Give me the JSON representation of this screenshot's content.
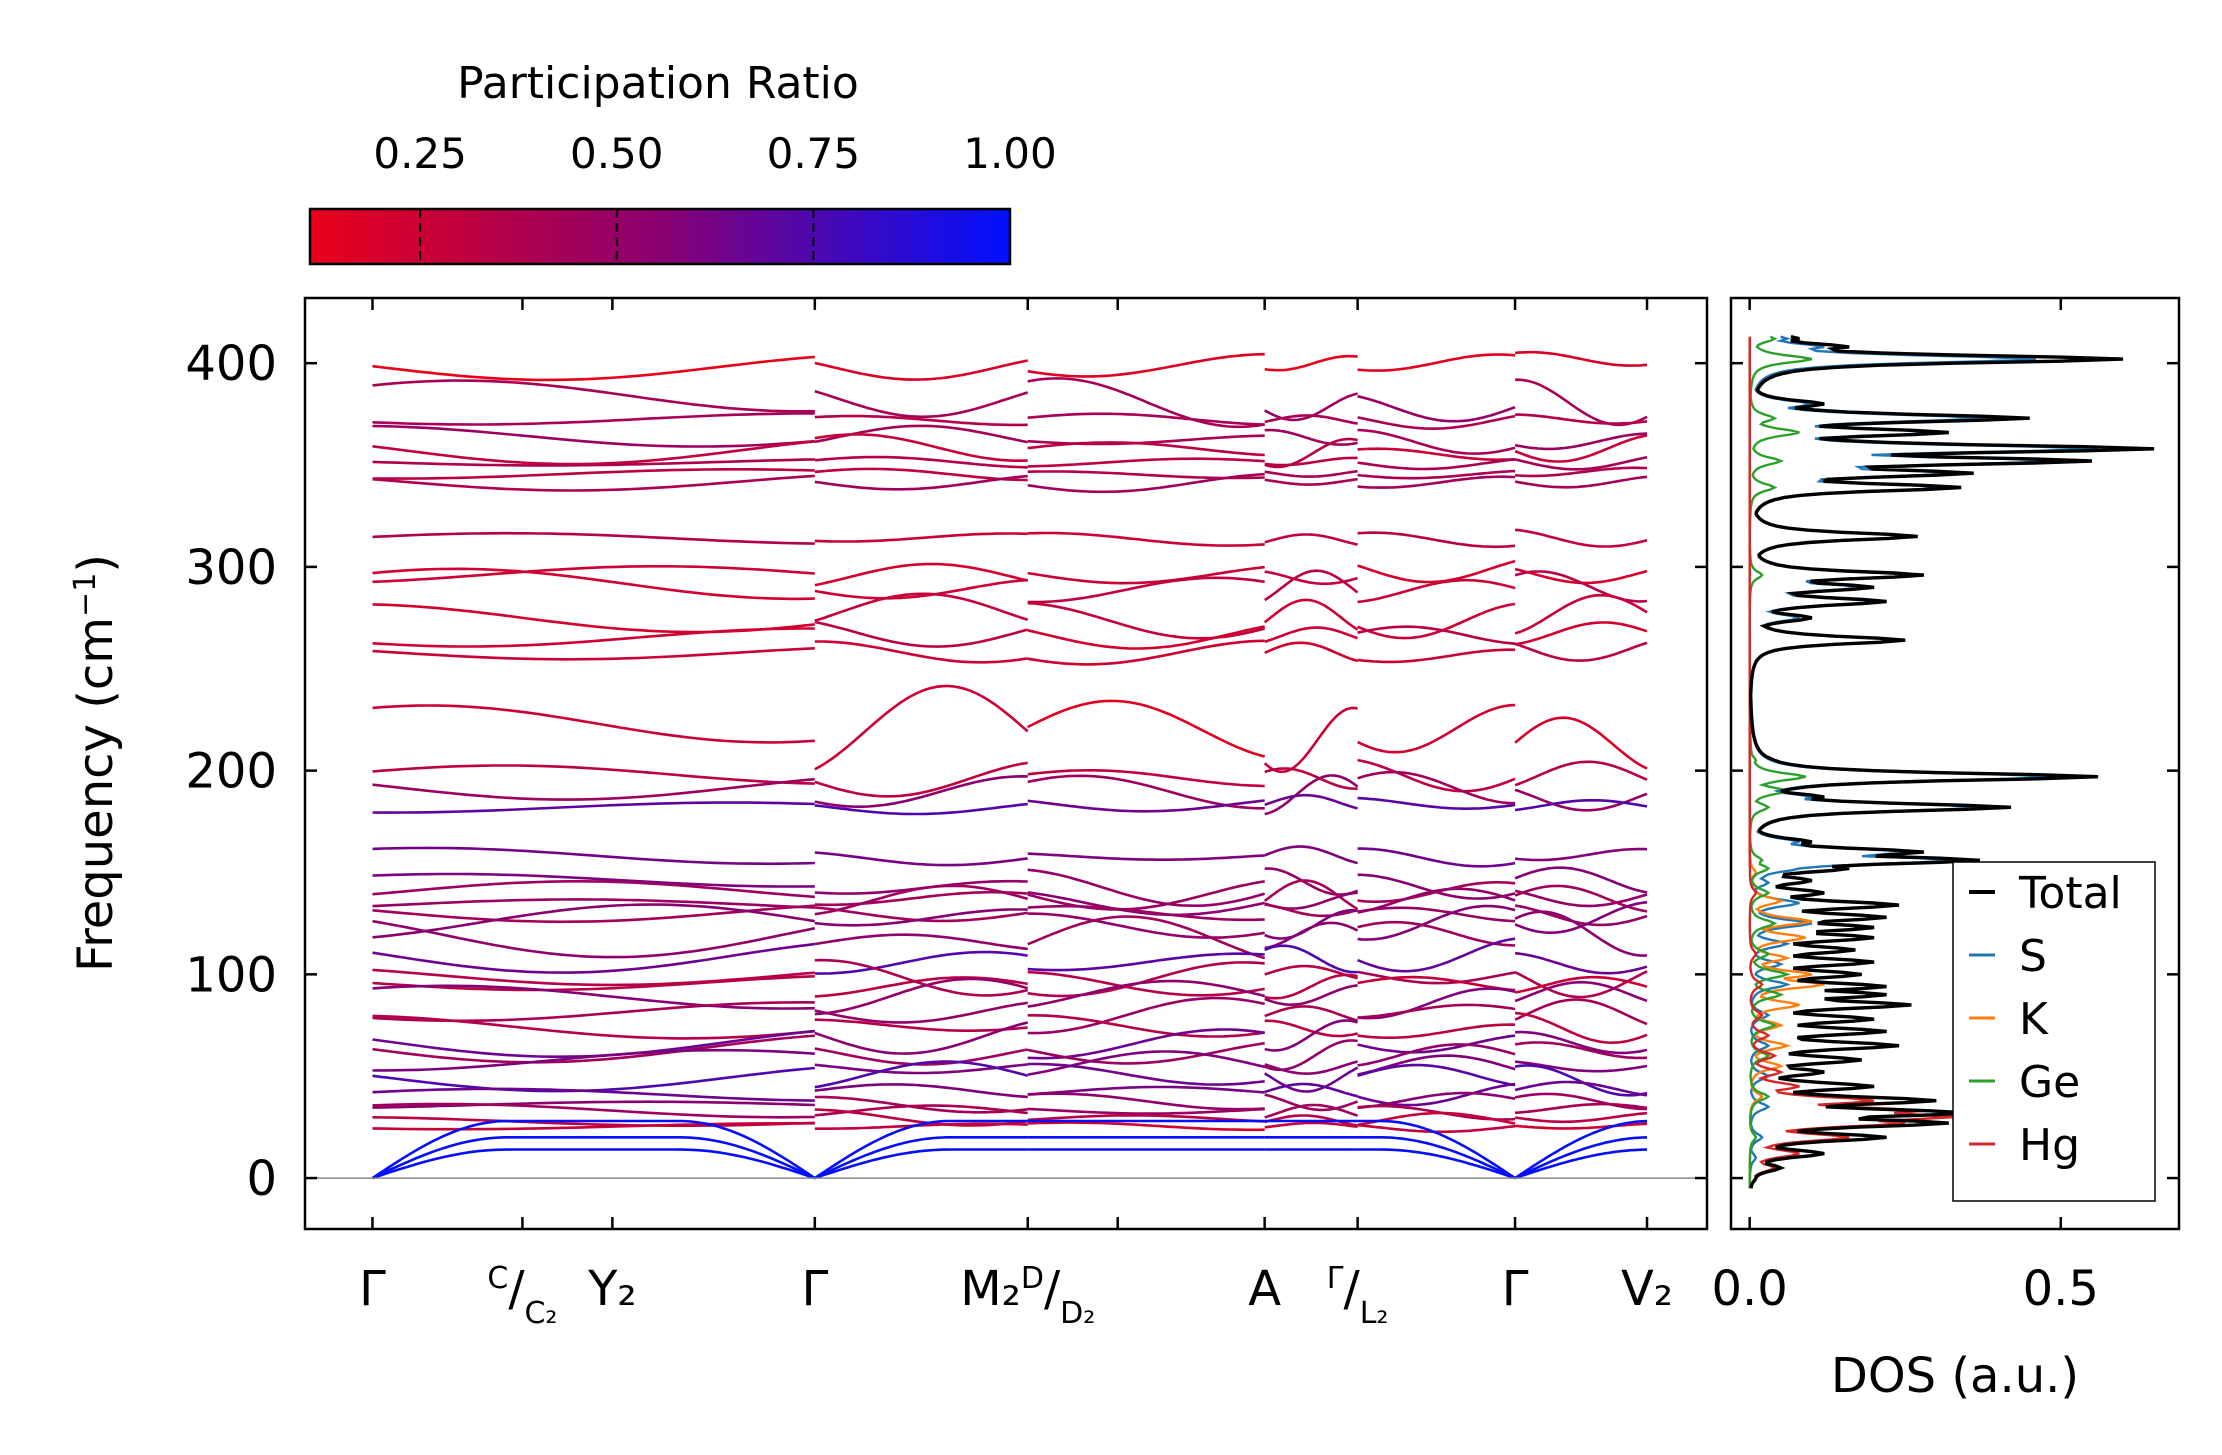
{
  "chart_data": [
    {
      "type": "line",
      "title": "",
      "xlabel": "",
      "ylabel": "Frequency (cm",
      "ylabel_suffix": ")",
      "ylabel_exponent": "−1",
      "ylim": [
        -25,
        432
      ],
      "yticks": [
        0,
        100,
        200,
        300,
        400
      ],
      "ytick_labels": [
        "0",
        "100",
        "200",
        "300",
        "400"
      ],
      "high_symmetry_points": [
        {
          "pos": 0.0,
          "main": "Γ",
          "sup": "",
          "slash": "",
          "sub": ""
        },
        {
          "pos": 1.0,
          "main": "",
          "sup": "C",
          "slash": "/",
          "sub": "C₂"
        },
        {
          "pos": 1.6,
          "main": "Y₂",
          "sup": "",
          "slash": "",
          "sub": ""
        },
        {
          "pos": 2.95,
          "main": "Γ",
          "sup": "",
          "slash": "",
          "sub": ""
        },
        {
          "pos": 4.37,
          "main": "M₂",
          "sup": "D",
          "slash": "/",
          "sub": "D₂"
        },
        {
          "pos": 4.97,
          "main": "",
          "sup": "",
          "slash": "",
          "sub": ""
        },
        {
          "pos": 5.95,
          "main": "A",
          "sup": "",
          "slash": "",
          "sub": ""
        },
        {
          "pos": 6.57,
          "main": "",
          "sup": "Γ",
          "slash": "/",
          "sub": "L₂"
        },
        {
          "pos": 7.62,
          "main": "Γ",
          "sup": "",
          "slash": "",
          "sub": ""
        },
        {
          "pos": 8.5,
          "main": "V₂",
          "sup": "",
          "slash": "",
          "sub": ""
        }
      ],
      "xlim": [
        -0.45,
        8.9
      ],
      "segment_breaks": [
        2.95,
        4.37,
        5.95,
        6.57,
        7.62
      ],
      "zero_line": 0,
      "colorbar": {
        "title": "Participation Ratio",
        "ticks": [
          0.25,
          0.5,
          0.75,
          1.0
        ],
        "tick_labels": [
          "0.25",
          "0.50",
          "0.75",
          "1.00"
        ],
        "range": [
          0.11,
          1.0
        ],
        "color_low": "#e8001a",
        "color_mid": "#8a0070",
        "color_high": "#0010ff"
      },
      "bands_flat": [
        {
          "y": 400,
          "pr": 0.13,
          "wave": 6
        },
        {
          "y": 381,
          "pr": 0.45,
          "wave": 8
        },
        {
          "y": 372,
          "pr": 0.4,
          "wave": 3
        },
        {
          "y": 363,
          "pr": 0.42,
          "wave": 4
        },
        {
          "y": 357,
          "pr": 0.3,
          "wave": 5
        },
        {
          "y": 352,
          "pr": 0.38,
          "wave": 3
        },
        {
          "y": 346,
          "pr": 0.35,
          "wave": 2
        },
        {
          "y": 341,
          "pr": 0.4,
          "wave": 3
        },
        {
          "y": 314,
          "pr": 0.3,
          "wave": 3
        },
        {
          "y": 297,
          "pr": 0.25,
          "wave": 6
        },
        {
          "y": 290,
          "pr": 0.28,
          "wave": 6
        },
        {
          "y": 276,
          "pr": 0.25,
          "wave": 8
        },
        {
          "y": 267,
          "pr": 0.27,
          "wave": 5
        },
        {
          "y": 258,
          "pr": 0.28,
          "wave": 5
        },
        {
          "y": 218,
          "pr": 0.2,
          "wave": 18
        },
        {
          "y": 198,
          "pr": 0.32,
          "wave": 6
        },
        {
          "y": 190,
          "pr": 0.5,
          "wave": 8
        },
        {
          "y": 183,
          "pr": 0.7,
          "wave": 3
        },
        {
          "y": 158,
          "pr": 0.62,
          "wave": 3
        },
        {
          "y": 145,
          "pr": 0.55,
          "wave": 6
        },
        {
          "y": 139,
          "pr": 0.45,
          "wave": 6
        },
        {
          "y": 135,
          "pr": 0.5,
          "wave": 5
        },
        {
          "y": 131,
          "pr": 0.48,
          "wave": 5
        },
        {
          "y": 126,
          "pr": 0.55,
          "wave": 6
        },
        {
          "y": 118,
          "pr": 0.5,
          "wave": 8
        },
        {
          "y": 108,
          "pr": 0.7,
          "wave": 8
        },
        {
          "y": 99,
          "pr": 0.4,
          "wave": 6
        },
        {
          "y": 95,
          "pr": 0.3,
          "wave": 4
        },
        {
          "y": 88,
          "pr": 0.55,
          "wave": 7
        },
        {
          "y": 82,
          "pr": 0.45,
          "wave": 6
        },
        {
          "y": 74,
          "pr": 0.35,
          "wave": 5
        },
        {
          "y": 68,
          "pr": 0.6,
          "wave": 6
        },
        {
          "y": 62,
          "pr": 0.5,
          "wave": 5
        },
        {
          "y": 56,
          "pr": 0.55,
          "wave": 5
        },
        {
          "y": 49,
          "pr": 0.7,
          "wave": 5
        },
        {
          "y": 42,
          "pr": 0.65,
          "wave": 4
        },
        {
          "y": 37,
          "pr": 0.5,
          "wave": 3
        },
        {
          "y": 33,
          "pr": 0.45,
          "wave": 3
        },
        {
          "y": 29,
          "pr": 0.3,
          "wave": 3
        },
        {
          "y": 25,
          "pr": 0.25,
          "wave": 2
        }
      ],
      "acoustic": [
        {
          "top": 28,
          "pr": 0.98
        },
        {
          "top": 20,
          "pr": 0.98
        },
        {
          "top": 14,
          "pr": 0.98
        }
      ]
    },
    {
      "type": "line",
      "xlabel": "DOS (a.u.)",
      "xlim": [
        -0.03,
        0.69
      ],
      "xticks": [
        0.0,
        0.5
      ],
      "xtick_labels": [
        "0.0",
        "0.5"
      ],
      "ylim": [
        -25,
        432
      ],
      "legend_position": "lower-right",
      "series": [
        {
          "name": "Total",
          "color": "#000000",
          "peaks": [
            [
              0,
              0.01
            ],
            [
              5,
              0.05
            ],
            [
              12,
              0.12
            ],
            [
              20,
              0.22
            ],
            [
              27,
              0.32
            ],
            [
              32,
              0.35
            ],
            [
              38,
              0.3
            ],
            [
              45,
              0.2
            ],
            [
              52,
              0.12
            ],
            [
              58,
              0.18
            ],
            [
              65,
              0.24
            ],
            [
              72,
              0.22
            ],
            [
              78,
              0.2
            ],
            [
              85,
              0.26
            ],
            [
              90,
              0.22
            ],
            [
              94,
              0.22
            ],
            [
              100,
              0.18
            ],
            [
              106,
              0.2
            ],
            [
              112,
              0.17
            ],
            [
              118,
              0.2
            ],
            [
              123,
              0.2
            ],
            [
              128,
              0.22
            ],
            [
              134,
              0.24
            ],
            [
              140,
              0.12
            ],
            [
              146,
              0.1
            ],
            [
              152,
              0.16
            ],
            [
              156,
              0.37
            ],
            [
              160,
              0.28
            ],
            [
              165,
              0.1
            ],
            [
              182,
              0.42
            ],
            [
              187,
              0.12
            ],
            [
              197,
              0.56
            ],
            [
              205,
              0.04
            ],
            [
              264,
              0.25
            ],
            [
              275,
              0.1
            ],
            [
              283,
              0.22
            ],
            [
              290,
              0.2
            ],
            [
              296,
              0.28
            ],
            [
              315,
              0.27
            ],
            [
              339,
              0.34
            ],
            [
              346,
              0.36
            ],
            [
              352,
              0.55
            ],
            [
              358,
              0.65
            ],
            [
              366,
              0.32
            ],
            [
              373,
              0.45
            ],
            [
              380,
              0.12
            ],
            [
              402,
              0.6
            ],
            [
              408,
              0.16
            ],
            [
              412,
              0.08
            ]
          ]
        },
        {
          "name": "S",
          "color": "#1f77b4",
          "peaks": [
            [
              0,
              0.0
            ],
            [
              10,
              0.01
            ],
            [
              20,
              0.02
            ],
            [
              35,
              0.03
            ],
            [
              50,
              0.03
            ],
            [
              65,
              0.03
            ],
            [
              80,
              0.03
            ],
            [
              95,
              0.06
            ],
            [
              105,
              0.05
            ],
            [
              115,
              0.06
            ],
            [
              125,
              0.1
            ],
            [
              135,
              0.08
            ],
            [
              145,
              0.03
            ],
            [
              152,
              0.08
            ],
            [
              156,
              0.33
            ],
            [
              160,
              0.26
            ],
            [
              165,
              0.08
            ],
            [
              182,
              0.38
            ],
            [
              187,
              0.1
            ],
            [
              197,
              0.5
            ],
            [
              205,
              0.03
            ],
            [
              264,
              0.24
            ],
            [
              275,
              0.08
            ],
            [
              283,
              0.2
            ],
            [
              290,
              0.18
            ],
            [
              296,
              0.26
            ],
            [
              315,
              0.26
            ],
            [
              339,
              0.32
            ],
            [
              346,
              0.33
            ],
            [
              352,
              0.5
            ],
            [
              358,
              0.56
            ],
            [
              366,
              0.3
            ],
            [
              373,
              0.38
            ],
            [
              380,
              0.1
            ],
            [
              402,
              0.46
            ],
            [
              408,
              0.12
            ],
            [
              412,
              0.06
            ]
          ]
        },
        {
          "name": "K",
          "color": "#ff7f0e",
          "peaks": [
            [
              0,
              0.0
            ],
            [
              20,
              0.01
            ],
            [
              40,
              0.02
            ],
            [
              55,
              0.05
            ],
            [
              65,
              0.06
            ],
            [
              75,
              0.05
            ],
            [
              85,
              0.08
            ],
            [
              95,
              0.12
            ],
            [
              100,
              0.1
            ],
            [
              108,
              0.06
            ],
            [
              118,
              0.09
            ],
            [
              126,
              0.1
            ],
            [
              136,
              0.05
            ],
            [
              150,
              0.01
            ],
            [
              200,
              0.0
            ]
          ]
        },
        {
          "name": "Ge",
          "color": "#2ca02c",
          "peaks": [
            [
              0,
              0.0
            ],
            [
              20,
              0.01
            ],
            [
              40,
              0.03
            ],
            [
              60,
              0.03
            ],
            [
              75,
              0.04
            ],
            [
              90,
              0.05
            ],
            [
              100,
              0.06
            ],
            [
              110,
              0.03
            ],
            [
              125,
              0.04
            ],
            [
              140,
              0.03
            ],
            [
              152,
              0.03
            ],
            [
              156,
              0.02
            ],
            [
              182,
              0.03
            ],
            [
              190,
              0.06
            ],
            [
              197,
              0.09
            ],
            [
              205,
              0.01
            ],
            [
              296,
              0.02
            ],
            [
              339,
              0.04
            ],
            [
              352,
              0.05
            ],
            [
              366,
              0.08
            ],
            [
              373,
              0.04
            ],
            [
              402,
              0.1
            ],
            [
              412,
              0.04
            ]
          ]
        },
        {
          "name": "Hg",
          "color": "#d62728",
          "peaks": [
            [
              0,
              0.01
            ],
            [
              5,
              0.04
            ],
            [
              12,
              0.08
            ],
            [
              20,
              0.16
            ],
            [
              27,
              0.25
            ],
            [
              30,
              0.33
            ],
            [
              33,
              0.28
            ],
            [
              38,
              0.2
            ],
            [
              45,
              0.08
            ],
            [
              52,
              0.05
            ],
            [
              60,
              0.04
            ],
            [
              70,
              0.03
            ],
            [
              80,
              0.02
            ],
            [
              95,
              0.02
            ],
            [
              110,
              0.01
            ],
            [
              140,
              0.01
            ],
            [
              200,
              0.0
            ]
          ]
        }
      ]
    }
  ]
}
